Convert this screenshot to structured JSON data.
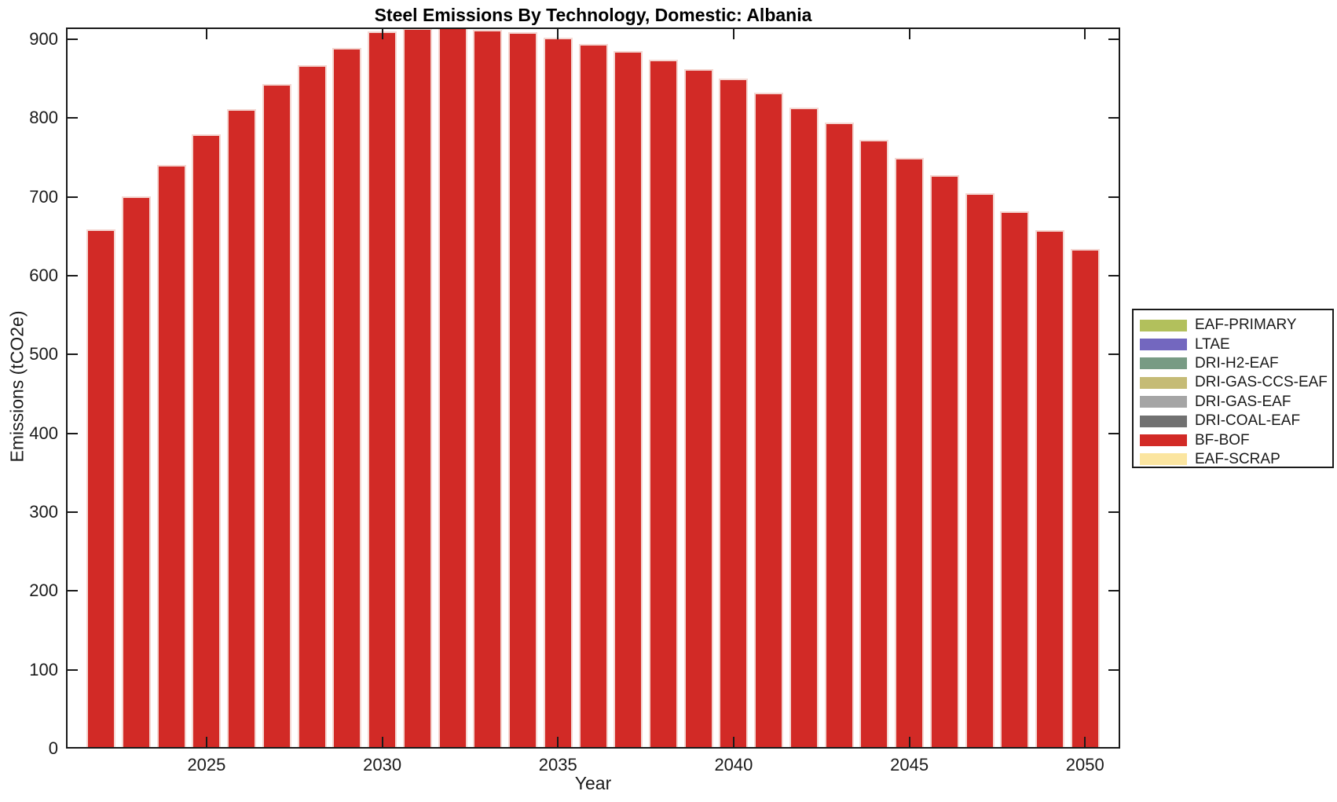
{
  "figure": {
    "title": "Steel Emissions By Technology, Domestic: Albania",
    "xlabel": "Year",
    "ylabel": "Emissions (tCO2e)"
  },
  "legend": {
    "items": [
      {
        "label": "EAF-PRIMARY",
        "color": "#b2c05c"
      },
      {
        "label": "LTAE",
        "color": "#7367bf"
      },
      {
        "label": "DRI-H2-EAF",
        "color": "#789b84"
      },
      {
        "label": "DRI-GAS-CCS-EAF",
        "color": "#c5bb76"
      },
      {
        "label": "DRI-GAS-EAF",
        "color": "#a5a5a5"
      },
      {
        "label": "DRI-COAL-EAF",
        "color": "#717171"
      },
      {
        "label": "BF-BOF",
        "color": "#d22a26"
      },
      {
        "label": "EAF-SCRAP",
        "color": "#fbe5a0"
      }
    ]
  },
  "chart_data": {
    "type": "bar",
    "title": "Steel Emissions By Technology, Domestic: Albania",
    "xlabel": "Year",
    "ylabel": "Emissions (tCO2e)",
    "x": [
      2022,
      2023,
      2024,
      2025,
      2026,
      2027,
      2028,
      2029,
      2030,
      2031,
      2032,
      2033,
      2034,
      2035,
      2036,
      2037,
      2038,
      2039,
      2040,
      2041,
      2042,
      2043,
      2044,
      2045,
      2046,
      2047,
      2048,
      2049,
      2050
    ],
    "series": [
      {
        "name": "BF-BOF",
        "values": [
          659,
          701,
          741,
          779,
          811,
          843,
          867,
          889,
          910,
          914,
          915,
          912,
          909,
          902,
          894,
          885,
          874,
          862,
          850,
          832,
          813,
          794,
          772,
          750,
          728,
          705,
          682,
          658,
          634
        ]
      }
    ],
    "legend_entries": [
      "EAF-PRIMARY",
      "LTAE",
      "DRI-H2-EAF",
      "DRI-GAS-CCS-EAF",
      "DRI-GAS-EAF",
      "DRI-COAL-EAF",
      "BF-BOF",
      "EAF-SCRAP"
    ],
    "bar_color": "#d22a26",
    "bar_edge_color": "#f4d7d2",
    "xlim": [
      2021.0,
      2051.0
    ],
    "ylim": [
      0,
      915
    ],
    "xticks": [
      2025,
      2030,
      2035,
      2040,
      2045,
      2050
    ],
    "yticks": [
      0,
      100,
      200,
      300,
      400,
      500,
      600,
      700,
      800,
      900
    ],
    "grid": false,
    "legend_position": "right-outside"
  }
}
